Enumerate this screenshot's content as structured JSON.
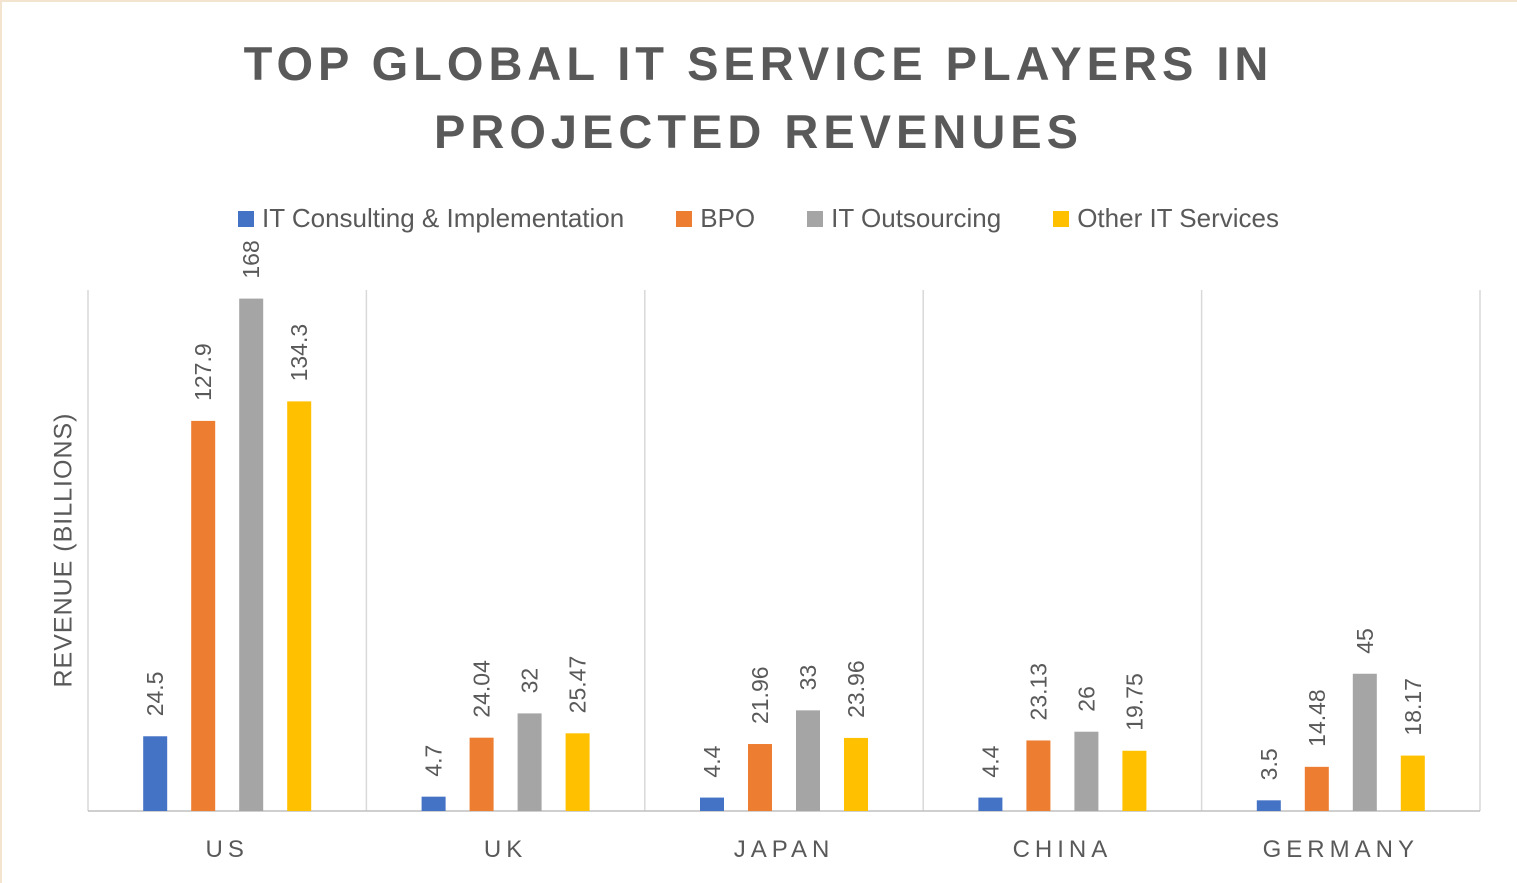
{
  "title_lines": [
    "TOP GLOBAL IT SERVICE PLAYERS IN",
    "PROJECTED REVENUES"
  ],
  "chart_data": {
    "type": "bar",
    "title": "TOP GLOBAL IT SERVICE PLAYERS IN PROJECTED REVENUES",
    "xlabel": "",
    "ylabel": "REVENUE (BILLIONS)",
    "categories": [
      "US",
      "UK",
      "JAPAN",
      "CHINA",
      "GERMANY"
    ],
    "ylim": [
      0,
      180
    ],
    "grid": "vertical category separators",
    "legend_position": "top",
    "series": [
      {
        "name": "IT Consulting & Implementation",
        "color": "#4472C4",
        "values": [
          24.5,
          4.7,
          4.4,
          4.4,
          3.5
        ]
      },
      {
        "name": "BPO",
        "color": "#ED7D31",
        "values": [
          127.9,
          24.04,
          21.96,
          23.13,
          14.48
        ]
      },
      {
        "name": "IT Outsourcing",
        "color": "#A5A5A5",
        "values": [
          168,
          32,
          33,
          26,
          45
        ]
      },
      {
        "name": "Other IT Services",
        "color": "#FFC000",
        "values": [
          134.3,
          25.47,
          23.96,
          19.75,
          18.17
        ]
      }
    ]
  }
}
